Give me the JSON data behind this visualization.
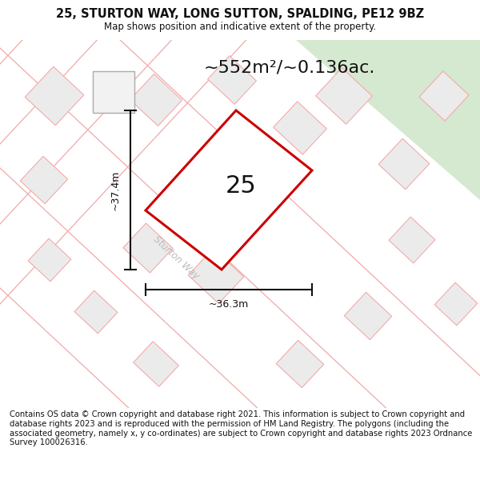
{
  "title": "25, STURTON WAY, LONG SUTTON, SPALDING, PE12 9BZ",
  "subtitle": "Map shows position and indicative extent of the property.",
  "footer": "Contains OS data © Crown copyright and database right 2021. This information is subject to Crown copyright and database rights 2023 and is reproduced with the permission of HM Land Registry. The polygons (including the associated geometry, namely x, y co-ordinates) are subject to Crown copyright and database rights 2023 Ordnance Survey 100026316.",
  "area_label": "~552m²/~0.136ac.",
  "property_number": "25",
  "dim_width": "~36.3m",
  "dim_height": "~37.4m",
  "road_label": "Sturton Way",
  "bg_color": "#f7f7f7",
  "green_color": "#d5e8d0",
  "property_stroke": "#cc0000",
  "property_fill": "#ffffff",
  "building_fill": "#e8e8e8",
  "building_stroke": "#f0aaaa",
  "road_fill": "#eeeeee",
  "dim_color": "#111111",
  "title_fontsize": 10.5,
  "subtitle_fontsize": 8.5,
  "footer_fontsize": 7.2,
  "area_fontsize": 16,
  "number_fontsize": 22,
  "road_label_fontsize": 8.5
}
